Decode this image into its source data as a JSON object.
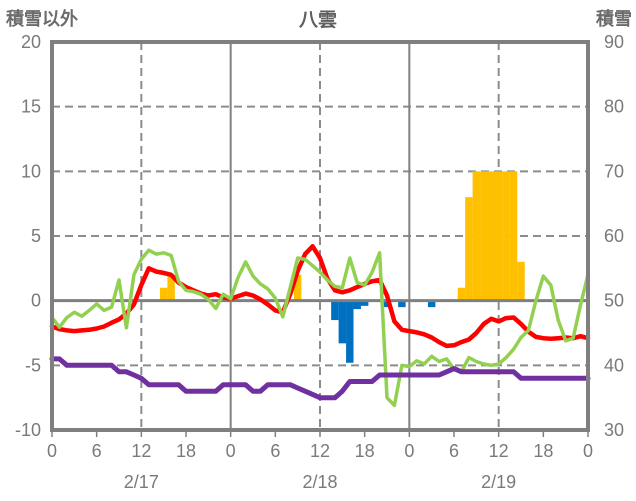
{
  "header": {
    "left_axis_title": "積雪以外",
    "title": "八雲",
    "right_axis_title": "積雪"
  },
  "chart_data": {
    "type": "line+bar",
    "x_unit": "hour",
    "x_range": [
      0,
      72
    ],
    "grid": "on",
    "legend": "none",
    "x_axis": {
      "tick_step_hours": 6,
      "hour_tick_labels": [
        "0",
        "6",
        "12",
        "18",
        "0",
        "6",
        "12",
        "18",
        "0",
        "6",
        "12",
        "18",
        "0"
      ],
      "day_labels": [
        {
          "hour": 12,
          "label": "2/17"
        },
        {
          "hour": 36,
          "label": "2/18"
        },
        {
          "hour": 60,
          "label": "2/19"
        }
      ],
      "solid_vlines_hours": [
        24,
        48
      ],
      "dashed_vlines_hours": [
        12,
        36,
        60
      ]
    },
    "left_axis": {
      "min": -10,
      "max": 20,
      "tick_values": [
        20,
        15,
        10,
        5,
        0,
        -5,
        -10
      ],
      "tick_labels": [
        "20",
        "15",
        "10",
        "5",
        "0",
        "-5",
        "-10"
      ],
      "dashed_hlines": [
        15,
        10,
        5,
        -5
      ],
      "zero_line": 0
    },
    "right_axis": {
      "min": 30,
      "max": 90,
      "tick_values": [
        90,
        80,
        70,
        60,
        50,
        40,
        30
      ],
      "tick_labels": [
        "90",
        "80",
        "70",
        "60",
        "50",
        "40",
        "30"
      ]
    },
    "bars": {
      "positive": {
        "name": "orange-bars",
        "color": "#FFC000",
        "axis": "left",
        "by_hour": {
          "15": 1,
          "16": 2,
          "33": 2,
          "55": 1,
          "56": 8,
          "57": 10,
          "58": 10,
          "59": 10,
          "60": 10,
          "61": 10,
          "62": 10,
          "63": 3
        }
      },
      "negative": {
        "name": "blue-bars",
        "color": "#0070C0",
        "axis": "left",
        "by_hour": {
          "38": -1.5,
          "39": -3.3,
          "40": -4.8,
          "41": -0.65,
          "42": -0.4,
          "45": -0.5,
          "47": -0.5,
          "51": -0.5
        }
      }
    },
    "lines": [
      {
        "name": "red-line",
        "color": "#FF0000",
        "axis": "left",
        "width": 4.5,
        "values": [
          -2.0,
          -2.2,
          -2.3,
          -2.35,
          -2.3,
          -2.25,
          -2.15,
          -2.0,
          -1.7,
          -1.45,
          -1.0,
          -0.3,
          1.2,
          2.5,
          2.25,
          2.15,
          2.0,
          1.4,
          1.05,
          0.8,
          0.55,
          0.4,
          0.5,
          0.25,
          0.15,
          0.35,
          0.55,
          0.4,
          0.1,
          -0.3,
          -0.75,
          -0.9,
          0.5,
          2.3,
          3.6,
          4.2,
          3.3,
          1.7,
          0.8,
          0.65,
          0.8,
          1.05,
          1.3,
          1.5,
          1.6,
          0.4,
          -1.6,
          -2.25,
          -2.35,
          -2.45,
          -2.6,
          -2.85,
          -3.2,
          -3.5,
          -3.45,
          -3.2,
          -3.0,
          -2.5,
          -1.8,
          -1.4,
          -1.6,
          -1.35,
          -1.3,
          -1.8,
          -2.4,
          -2.8,
          -2.9,
          -2.95,
          -2.9,
          -2.85,
          -2.9,
          -2.75,
          -2.9
        ]
      },
      {
        "name": "green-line",
        "color": "#92D050",
        "axis": "left",
        "width": 3.5,
        "values": [
          -1.3,
          -2.05,
          -1.3,
          -0.9,
          -1.2,
          -0.75,
          -0.25,
          -0.75,
          -0.5,
          1.6,
          -2.1,
          2.0,
          3.2,
          3.9,
          3.6,
          3.7,
          3.5,
          1.5,
          0.8,
          0.7,
          0.5,
          0.1,
          -0.6,
          0.5,
          0.15,
          1.8,
          3.0,
          1.9,
          1.3,
          0.9,
          0.2,
          -1.25,
          1.0,
          3.3,
          3.2,
          2.7,
          2.2,
          1.6,
          1.1,
          1.0,
          3.3,
          1.4,
          1.2,
          2.2,
          3.7,
          -7.5,
          -8.1,
          -5.0,
          -5.1,
          -4.65,
          -4.9,
          -4.3,
          -4.7,
          -4.5,
          -5.3,
          -5.5,
          -4.4,
          -4.7,
          -4.9,
          -5.0,
          -4.9,
          -4.4,
          -3.75,
          -2.85,
          -2.3,
          0.0,
          1.9,
          1.2,
          -1.5,
          -3.1,
          -2.9,
          -0.3,
          2.0
        ]
      },
      {
        "name": "purple-line",
        "color": "#7030A0",
        "axis": "right",
        "width": 5,
        "values": [
          41,
          41,
          40,
          40,
          40,
          40,
          40,
          40,
          40,
          39,
          39,
          38.5,
          38,
          37,
          37,
          37,
          37,
          37,
          36,
          36,
          36,
          36,
          36,
          37,
          37,
          37,
          37,
          36,
          36,
          37,
          37,
          37,
          37,
          36.5,
          36,
          35.5,
          35,
          35,
          35,
          36,
          37.5,
          37.5,
          37.5,
          37.5,
          38.5,
          38.5,
          38.5,
          38.5,
          38.5,
          38.5,
          38.5,
          38.5,
          38.5,
          39,
          39.5,
          39,
          39,
          39,
          39,
          39,
          39,
          39,
          39,
          38,
          38,
          38,
          38,
          38,
          38,
          38,
          38,
          38,
          38
        ]
      }
    ]
  },
  "colors": {
    "background": "#FFFFFF",
    "frame": "#7F7F7F",
    "zero_line": "#7F7F7F",
    "solid_grid": "#808080",
    "dashed_grid": "#8C8C8C",
    "tick_text": "#7A7A7A",
    "title_text": "#5F5F5F"
  }
}
